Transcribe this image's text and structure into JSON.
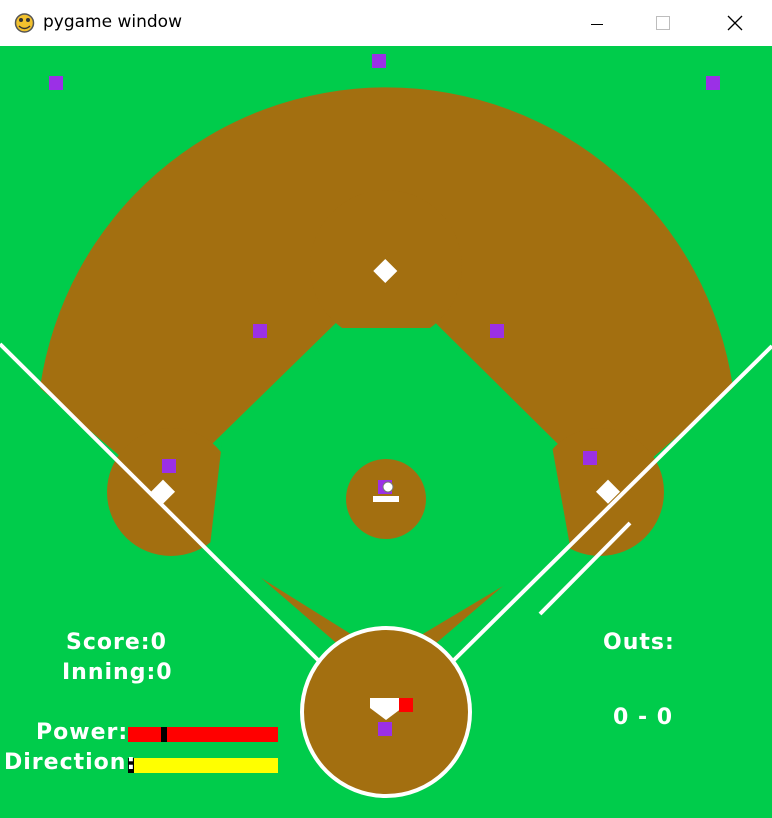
{
  "window": {
    "title": "pygame window",
    "icon": "pygame-snake-icon"
  },
  "hud": {
    "score_label": "Score:",
    "score_value": "0",
    "inning_label": "Inning:",
    "inning_value": "0",
    "outs_label": "Outs:",
    "count_text": "0 - 0",
    "power_label": "Power:",
    "direction_label": "Direction:",
    "power_level": 0.24,
    "direction_level": 0.02
  },
  "colors": {
    "grass": "#00cc4b",
    "dirt": "#a36f10",
    "lines": "#ffffff",
    "fielder": "#9b30e6",
    "power_bar": "#ff0000",
    "direction_bar": "#ffff00",
    "bar_marker": "#000000"
  }
}
